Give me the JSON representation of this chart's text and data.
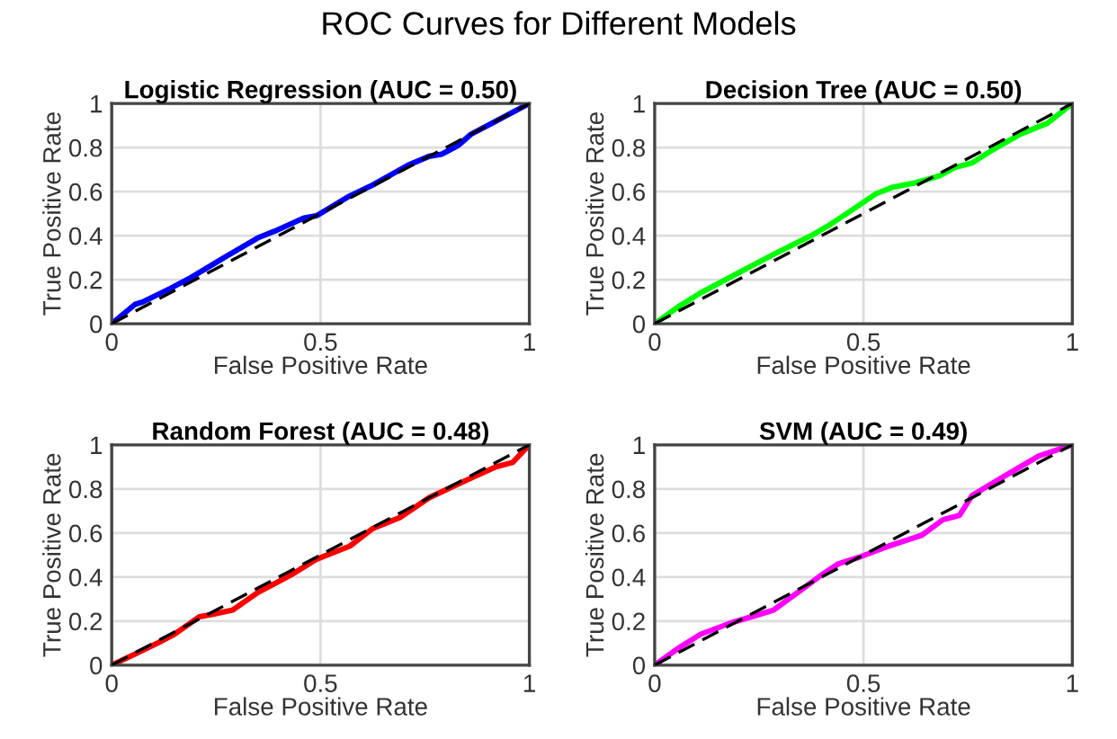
{
  "chart_data": [
    {
      "type": "line",
      "title": "Logistic Regression (AUC = 0.50)",
      "xlabel": "False Positive Rate",
      "ylabel": "True Positive Rate",
      "annotations": [
        "ROC Curves for Different Models"
      ],
      "xlim": [
        0,
        1
      ],
      "ylim": [
        0,
        1
      ],
      "xticks": [
        0,
        0.5,
        1
      ],
      "yticks": [
        0,
        0.2,
        0.4,
        0.6,
        0.8,
        1
      ],
      "grid": true,
      "series": [
        {
          "color": "#0000ff",
          "x": [
            0,
            0.056,
            0.076,
            0.14,
            0.19,
            0.26,
            0.35,
            0.39,
            0.46,
            0.49,
            0.57,
            0.625,
            0.71,
            0.76,
            0.79,
            0.83,
            0.86,
            0.92,
            1
          ],
          "values": [
            0,
            0.088,
            0.1,
            0.16,
            0.21,
            0.29,
            0.39,
            0.42,
            0.48,
            0.49,
            0.58,
            0.63,
            0.72,
            0.76,
            0.77,
            0.81,
            0.86,
            0.92,
            1
          ]
        },
        {
          "color": "#000000",
          "line_style": "dashed",
          "x": [
            0,
            1
          ],
          "values": [
            0,
            1
          ]
        }
      ]
    },
    {
      "type": "line",
      "title": "Decision Tree (AUC = 0.50)",
      "xlabel": "False Positive Rate",
      "ylabel": "True Positive Rate",
      "xlim": [
        0,
        1
      ],
      "ylim": [
        0,
        1
      ],
      "xticks": [
        0,
        0.5,
        1
      ],
      "yticks": [
        0,
        0.2,
        0.4,
        0.6,
        0.8,
        1
      ],
      "grid": true,
      "series": [
        {
          "color": "#00ff00",
          "x": [
            0,
            0.056,
            0.11,
            0.17,
            0.22,
            0.29,
            0.375,
            0.42,
            0.46,
            0.53,
            0.57,
            0.625,
            0.68,
            0.72,
            0.76,
            0.81,
            0.875,
            0.94,
            1
          ],
          "values": [
            0,
            0.076,
            0.14,
            0.2,
            0.25,
            0.32,
            0.4,
            0.45,
            0.5,
            0.59,
            0.62,
            0.64,
            0.67,
            0.71,
            0.73,
            0.79,
            0.86,
            0.91,
            1
          ]
        },
        {
          "color": "#000000",
          "line_style": "dashed",
          "x": [
            0,
            1
          ],
          "values": [
            0,
            1
          ]
        }
      ]
    },
    {
      "type": "line",
      "title": "Random Forest (AUC = 0.48)",
      "xlabel": "False Positive Rate",
      "ylabel": "True Positive Rate",
      "xlim": [
        0,
        1
      ],
      "ylim": [
        0,
        1
      ],
      "xticks": [
        0,
        0.5,
        1
      ],
      "yticks": [
        0,
        0.2,
        0.4,
        0.6,
        0.8,
        1
      ],
      "grid": true,
      "series": [
        {
          "color": "#ff0000",
          "x": [
            0,
            0.056,
            0.11,
            0.15,
            0.21,
            0.24,
            0.29,
            0.35,
            0.43,
            0.49,
            0.57,
            0.625,
            0.69,
            0.76,
            0.85,
            0.92,
            0.96,
            1
          ],
          "values": [
            0,
            0.05,
            0.1,
            0.14,
            0.22,
            0.23,
            0.25,
            0.33,
            0.41,
            0.48,
            0.54,
            0.62,
            0.67,
            0.76,
            0.84,
            0.9,
            0.92,
            1
          ]
        },
        {
          "color": "#000000",
          "line_style": "dashed",
          "x": [
            0,
            1
          ],
          "values": [
            0,
            1
          ]
        }
      ]
    },
    {
      "type": "line",
      "title": "SVM (AUC = 0.49)",
      "xlabel": "False Positive Rate",
      "ylabel": "True Positive Rate",
      "xlim": [
        0,
        1
      ],
      "ylim": [
        0,
        1
      ],
      "xticks": [
        0,
        0.5,
        1
      ],
      "yticks": [
        0,
        0.2,
        0.4,
        0.6,
        0.8,
        1
      ],
      "grid": true,
      "series": [
        {
          "color": "#ff00ff",
          "x": [
            0,
            0.056,
            0.11,
            0.18,
            0.25,
            0.285,
            0.35,
            0.4,
            0.44,
            0.49,
            0.56,
            0.64,
            0.69,
            0.73,
            0.76,
            0.83,
            0.92,
            1
          ],
          "values": [
            0,
            0.076,
            0.14,
            0.19,
            0.23,
            0.25,
            0.34,
            0.41,
            0.46,
            0.49,
            0.54,
            0.59,
            0.66,
            0.68,
            0.77,
            0.85,
            0.95,
            1
          ]
        },
        {
          "color": "#000000",
          "line_style": "dashed",
          "x": [
            0,
            1
          ],
          "values": [
            0,
            1
          ]
        }
      ]
    }
  ]
}
